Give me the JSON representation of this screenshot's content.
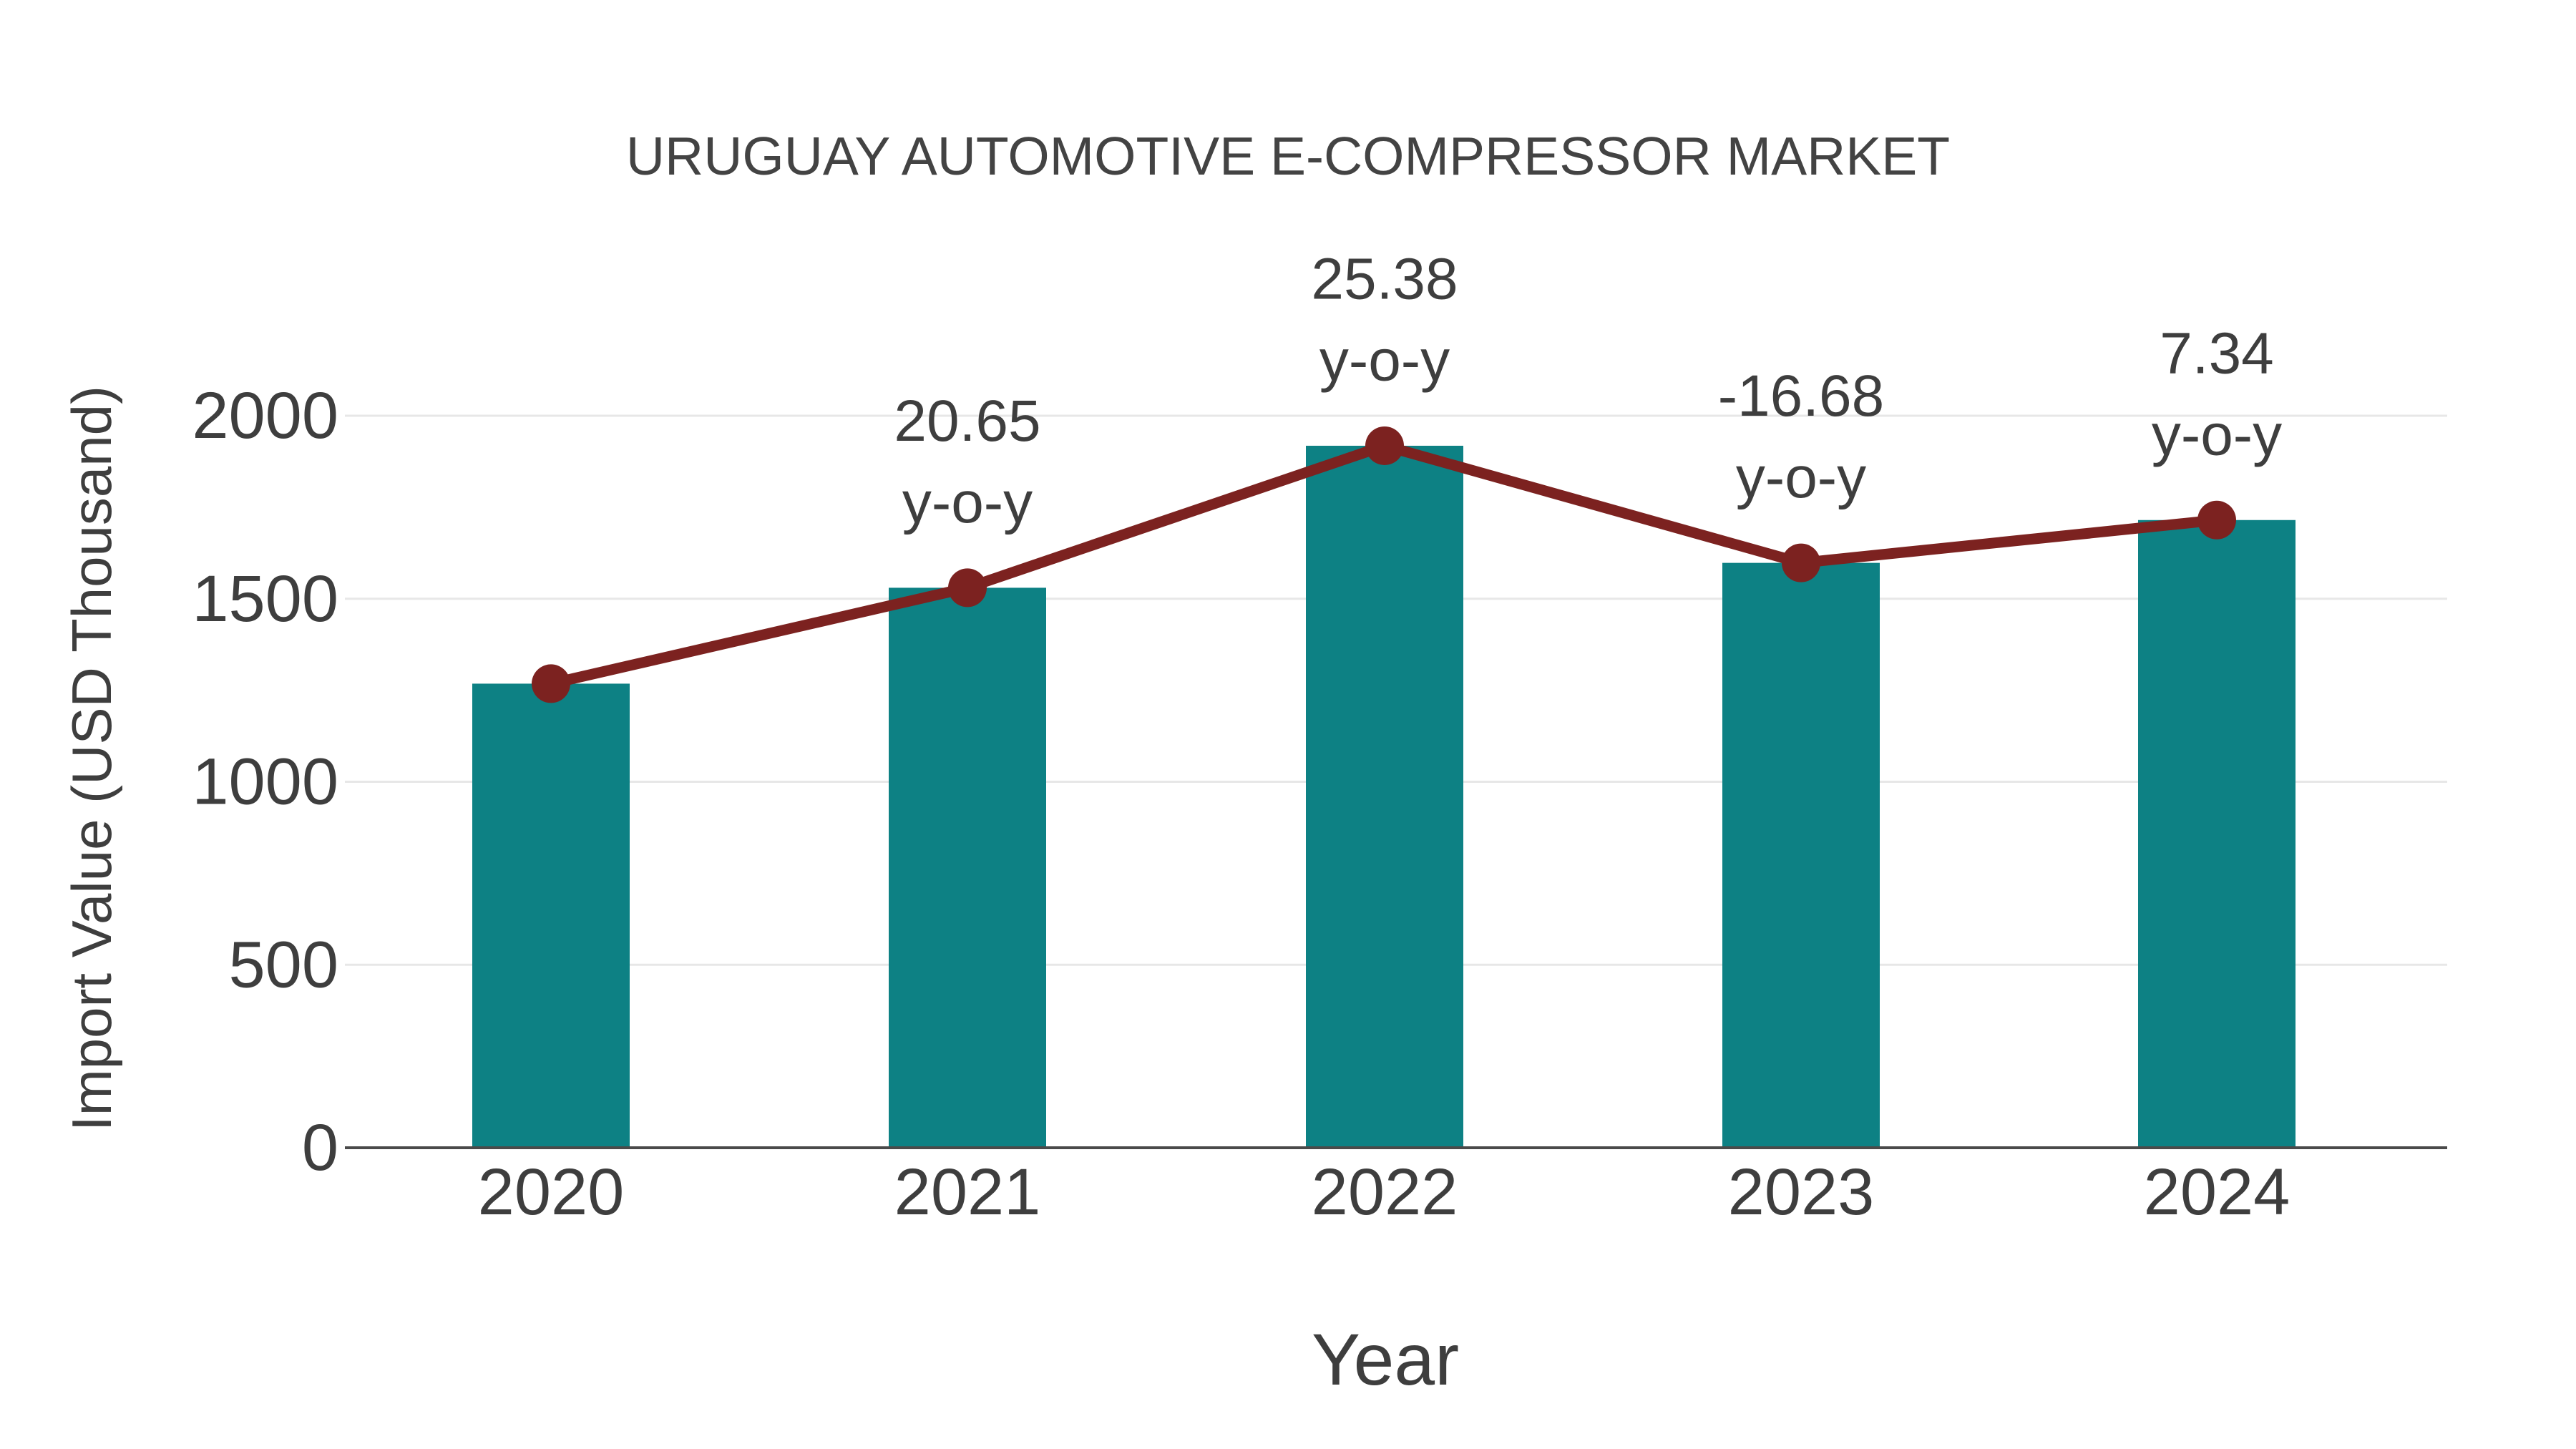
{
  "header": {
    "title": "URUGUAY AUTOMOTIVE E-COMPRESSOR MARKET"
  },
  "chart_data": {
    "type": "bar",
    "subtype": "bar-with-line-overlay",
    "title": "URUGUAY AUTOMOTIVE E-COMPRESSOR MARKET",
    "xlabel": "Year",
    "ylabel": "Import Value (USD Thousand)",
    "categories": [
      "2020",
      "2021",
      "2022",
      "2023",
      "2024"
    ],
    "series": [
      {
        "name": "Import Value (USD Thousand)",
        "type": "bar",
        "values": [
          1268,
          1530,
          1918,
          1598,
          1715
        ]
      },
      {
        "name": "y-o-y trend line",
        "type": "line",
        "values": [
          1268,
          1530,
          1918,
          1598,
          1715
        ]
      }
    ],
    "annotations": [
      {
        "category": "2021",
        "value_label": "20.65",
        "unit_label": "y-o-y"
      },
      {
        "category": "2022",
        "value_label": "25.38",
        "unit_label": "y-o-y"
      },
      {
        "category": "2023",
        "value_label": "-16.68",
        "unit_label": "y-o-y"
      },
      {
        "category": "2024",
        "value_label": "7.34",
        "unit_label": "y-o-y"
      }
    ],
    "yticks": [
      0,
      500,
      1000,
      1500,
      2000
    ],
    "ylim": [
      0,
      2150
    ],
    "grid": true,
    "legend_position": "none",
    "colors": {
      "bar": "#0d8184",
      "line": "#7c2220",
      "marker": "#7c2220",
      "grid": "#e7e7e7",
      "axis": "#4a4a4a",
      "text": "#3e3e3e",
      "title": "#434343"
    }
  }
}
